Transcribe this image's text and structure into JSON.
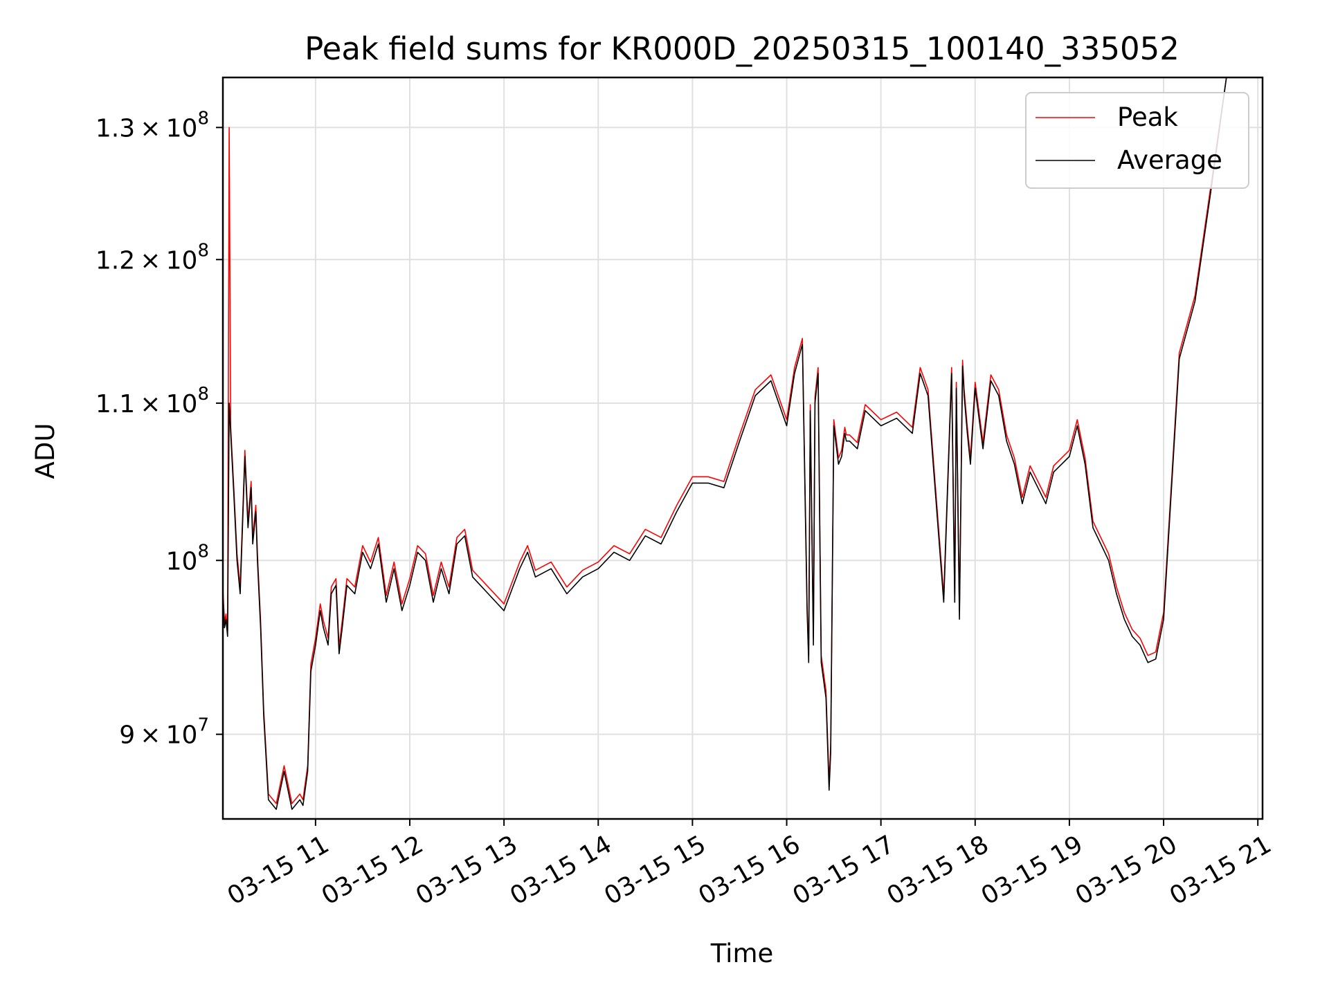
{
  "chart_data": {
    "type": "line",
    "title": "Peak field sums for KR000D_20250315_100140_335052",
    "xlabel": "Time",
    "ylabel": "ADU",
    "y_scale": "log",
    "xlim": [
      "2025-03-15 10:01",
      "2025-03-15 21:03"
    ],
    "ylim": [
      85500000,
      134000000
    ],
    "grid": true,
    "legend_position": "top-right",
    "x_ticks": [
      {
        "value": "2025-03-15 11:00",
        "label": "03-15 11"
      },
      {
        "value": "2025-03-15 12:00",
        "label": "03-15 12"
      },
      {
        "value": "2025-03-15 13:00",
        "label": "03-15 13"
      },
      {
        "value": "2025-03-15 14:00",
        "label": "03-15 14"
      },
      {
        "value": "2025-03-15 15:00",
        "label": "03-15 15"
      },
      {
        "value": "2025-03-15 16:00",
        "label": "03-15 16"
      },
      {
        "value": "2025-03-15 17:00",
        "label": "03-15 17"
      },
      {
        "value": "2025-03-15 18:00",
        "label": "03-15 18"
      },
      {
        "value": "2025-03-15 19:00",
        "label": "03-15 19"
      },
      {
        "value": "2025-03-15 20:00",
        "label": "03-15 20"
      },
      {
        "value": "2025-03-15 21:00",
        "label": "03-15 21"
      }
    ],
    "y_ticks": [
      {
        "value": 90000000,
        "mantissa": "9",
        "exponent": "7"
      },
      {
        "value": 100000000,
        "mantissa": "",
        "exponent": "8"
      },
      {
        "value": 110000000,
        "mantissa": "1.1",
        "exponent": "8"
      },
      {
        "value": 120000000,
        "mantissa": "1.2",
        "exponent": "8"
      },
      {
        "value": 130000000,
        "mantissa": "1.3",
        "exponent": "8"
      }
    ],
    "series": [
      {
        "name": "Peak",
        "color": "#ff0000"
      },
      {
        "name": "Average",
        "color": "#000000"
      }
    ],
    "x": [
      "2025-03-15 10:01",
      "2025-03-15 10:02",
      "2025-03-15 10:03",
      "2025-03-15 10:04",
      "2025-03-15 10:05",
      "2025-03-15 10:06",
      "2025-03-15 10:08",
      "2025-03-15 10:10",
      "2025-03-15 10:12",
      "2025-03-15 10:15",
      "2025-03-15 10:17",
      "2025-03-15 10:19",
      "2025-03-15 10:20",
      "2025-03-15 10:22",
      "2025-03-15 10:23",
      "2025-03-15 10:25",
      "2025-03-15 10:27",
      "2025-03-15 10:30",
      "2025-03-15 10:35",
      "2025-03-15 10:40",
      "2025-03-15 10:45",
      "2025-03-15 10:50",
      "2025-03-15 10:52",
      "2025-03-15 10:55",
      "2025-03-15 10:57",
      "2025-03-15 11:00",
      "2025-03-15 11:03",
      "2025-03-15 11:05",
      "2025-03-15 11:08",
      "2025-03-15 11:10",
      "2025-03-15 11:13",
      "2025-03-15 11:15",
      "2025-03-15 11:17",
      "2025-03-15 11:20",
      "2025-03-15 11:25",
      "2025-03-15 11:30",
      "2025-03-15 11:35",
      "2025-03-15 11:40",
      "2025-03-15 11:45",
      "2025-03-15 11:50",
      "2025-03-15 11:55",
      "2025-03-15 12:00",
      "2025-03-15 12:05",
      "2025-03-15 12:10",
      "2025-03-15 12:15",
      "2025-03-15 12:20",
      "2025-03-15 12:25",
      "2025-03-15 12:30",
      "2025-03-15 12:35",
      "2025-03-15 12:40",
      "2025-03-15 12:45",
      "2025-03-15 12:50",
      "2025-03-15 13:00",
      "2025-03-15 13:10",
      "2025-03-15 13:15",
      "2025-03-15 13:20",
      "2025-03-15 13:30",
      "2025-03-15 13:40",
      "2025-03-15 13:50",
      "2025-03-15 14:00",
      "2025-03-15 14:10",
      "2025-03-15 14:20",
      "2025-03-15 14:30",
      "2025-03-15 14:40",
      "2025-03-15 14:45",
      "2025-03-15 14:50",
      "2025-03-15 15:00",
      "2025-03-15 15:10",
      "2025-03-15 15:20",
      "2025-03-15 15:30",
      "2025-03-15 15:40",
      "2025-03-15 15:50",
      "2025-03-15 16:00",
      "2025-03-15 16:05",
      "2025-03-15 16:10",
      "2025-03-15 16:13",
      "2025-03-15 16:14",
      "2025-03-15 16:15",
      "2025-03-15 16:17",
      "2025-03-15 16:18",
      "2025-03-15 16:20",
      "2025-03-15 16:22",
      "2025-03-15 16:25",
      "2025-03-15 16:27",
      "2025-03-15 16:28",
      "2025-03-15 16:30",
      "2025-03-15 16:33",
      "2025-03-15 16:35",
      "2025-03-15 16:37",
      "2025-03-15 16:38",
      "2025-03-15 16:40",
      "2025-03-15 16:45",
      "2025-03-15 16:50",
      "2025-03-15 17:00",
      "2025-03-15 17:10",
      "2025-03-15 17:20",
      "2025-03-15 17:25",
      "2025-03-15 17:30",
      "2025-03-15 17:40",
      "2025-03-15 17:45",
      "2025-03-15 17:47",
      "2025-03-15 17:48",
      "2025-03-15 17:50",
      "2025-03-15 17:52",
      "2025-03-15 17:53",
      "2025-03-15 17:55",
      "2025-03-15 17:57",
      "2025-03-15 18:00",
      "2025-03-15 18:05",
      "2025-03-15 18:10",
      "2025-03-15 18:15",
      "2025-03-15 18:20",
      "2025-03-15 18:25",
      "2025-03-15 18:30",
      "2025-03-15 18:35",
      "2025-03-15 18:40",
      "2025-03-15 18:45",
      "2025-03-15 18:50",
      "2025-03-15 19:00",
      "2025-03-15 19:05",
      "2025-03-15 19:10",
      "2025-03-15 19:15",
      "2025-03-15 19:20",
      "2025-03-15 19:25",
      "2025-03-15 19:30",
      "2025-03-15 19:35",
      "2025-03-15 19:40",
      "2025-03-15 19:45",
      "2025-03-15 19:50",
      "2025-03-15 19:55",
      "2025-03-15 20:00",
      "2025-03-15 20:10",
      "2025-03-15 20:20",
      "2025-03-15 20:30",
      "2025-03-15 20:40",
      "2025-03-15 20:45",
      "2025-03-15 20:50",
      "2025-03-15 20:55",
      "2025-03-15 21:00",
      "2025-03-15 21:03"
    ],
    "average": [
      98000000,
      96000000,
      96500000,
      95500000,
      110000000,
      108000000,
      104000000,
      100000000,
      98000000,
      106500000,
      102000000,
      104500000,
      101000000,
      103000000,
      100000000,
      96000000,
      91000000,
      86500000,
      86000000,
      88000000,
      86000000,
      86500000,
      86200000,
      88000000,
      93500000,
      95000000,
      97000000,
      96000000,
      95000000,
      98000000,
      98500000,
      94500000,
      96000000,
      98500000,
      98000000,
      100500000,
      99500000,
      101000000,
      97500000,
      99500000,
      97000000,
      98500000,
      100500000,
      100000000,
      97500000,
      99500000,
      98000000,
      101000000,
      101500000,
      99000000,
      98500000,
      98000000,
      97000000,
      99500000,
      100500000,
      99000000,
      99500000,
      98000000,
      99000000,
      99500000,
      100500000,
      100000000,
      101500000,
      101000000,
      102000000,
      103000000,
      104800000,
      104800000,
      104500000,
      107500000,
      110500000,
      111500000,
      108500000,
      112000000,
      114000000,
      97000000,
      94000000,
      109500000,
      95000000,
      110000000,
      112000000,
      94000000,
      92000000,
      87000000,
      89000000,
      108500000,
      106000000,
      106500000,
      108000000,
      107500000,
      107500000,
      107000000,
      109500000,
      108500000,
      109000000,
      108000000,
      112000000,
      110500000,
      97500000,
      112000000,
      97500000,
      111000000,
      96500000,
      112500000,
      110500000,
      108000000,
      106000000,
      111000000,
      107000000,
      111500000,
      110500000,
      107500000,
      106000000,
      103500000,
      105500000,
      104500000,
      103500000,
      105500000,
      106500000,
      108500000,
      106000000,
      102000000,
      101000000,
      100000000,
      98000000,
      96500000,
      95500000,
      95000000,
      94000000,
      94200000,
      96500000,
      113000000,
      117000000,
      125000000,
      134000000
    ],
    "peak": [
      98300000,
      96300000,
      96800000,
      95800000,
      130000000,
      108400000,
      104400000,
      100400000,
      98400000,
      106900000,
      102400000,
      104900000,
      101400000,
      103400000,
      100400000,
      96400000,
      91300000,
      86800000,
      86300000,
      88300000,
      86300000,
      86800000,
      86500000,
      88300000,
      93900000,
      95400000,
      97400000,
      96400000,
      95400000,
      98400000,
      98900000,
      94900000,
      96400000,
      98900000,
      98400000,
      100900000,
      99900000,
      101400000,
      97900000,
      99900000,
      97400000,
      98900000,
      100900000,
      100400000,
      97900000,
      99900000,
      98400000,
      101400000,
      101900000,
      99400000,
      98900000,
      98400000,
      97400000,
      99900000,
      100900000,
      99400000,
      99900000,
      98400000,
      99400000,
      99900000,
      100900000,
      100400000,
      101900000,
      101400000,
      102400000,
      103400000,
      105200000,
      105200000,
      104900000,
      107900000,
      110900000,
      111900000,
      108900000,
      112400000,
      114400000,
      97400000,
      94400000,
      109900000,
      95400000,
      110400000,
      112400000,
      94400000,
      92400000,
      87400000,
      89400000,
      108900000,
      106400000,
      106900000,
      108400000,
      107900000,
      107900000,
      107400000,
      109900000,
      108900000,
      109400000,
      108400000,
      112400000,
      110900000,
      97900000,
      112400000,
      97900000,
      111400000,
      96900000,
      112900000,
      110900000,
      108400000,
      106400000,
      111400000,
      107400000,
      111900000,
      110900000,
      107900000,
      106400000,
      103900000,
      105900000,
      104900000,
      103900000,
      105900000,
      106900000,
      108900000,
      106400000,
      102400000,
      101400000,
      100400000,
      98400000,
      96900000,
      95900000,
      95400000,
      94400000,
      94600000,
      96900000,
      113400000,
      117400000,
      125400000,
      134000000
    ]
  }
}
